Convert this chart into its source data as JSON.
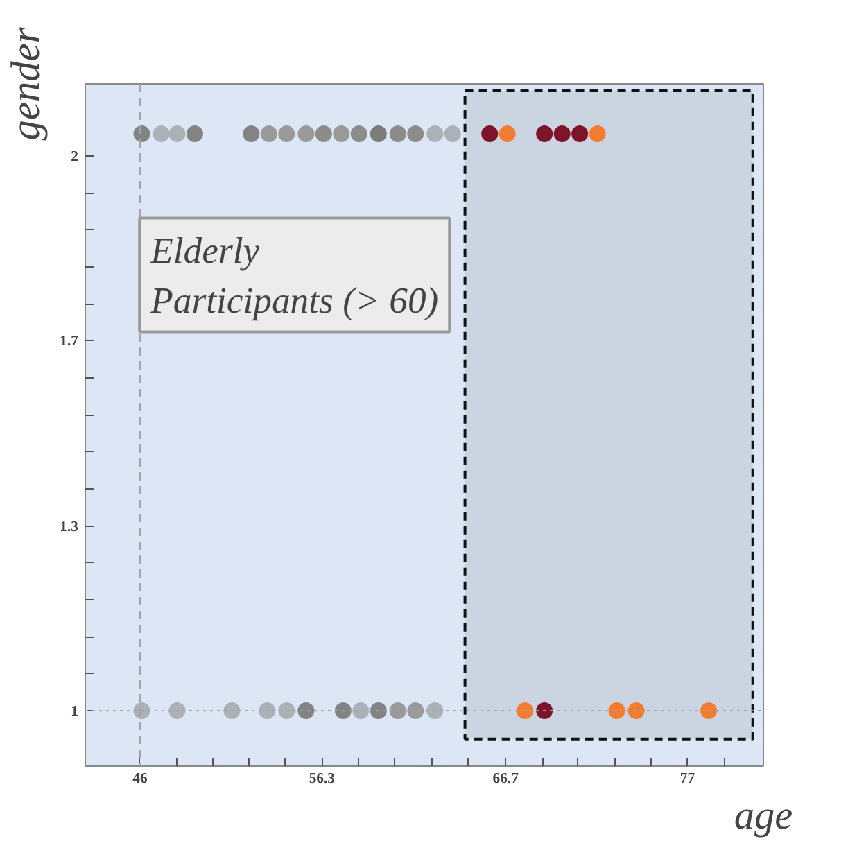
{
  "chart_data": {
    "type": "scatter",
    "xlabel": "age",
    "ylabel": "gender",
    "xlim": [
      42.9,
      81.3
    ],
    "ylim": [
      0.9,
      2.13
    ],
    "xticks": [
      {
        "value": 46,
        "label": "46"
      },
      {
        "value": 48.1,
        "label": null
      },
      {
        "value": 50.1,
        "label": null
      },
      {
        "value": 52.2,
        "label": null
      },
      {
        "value": 54.2,
        "label": null
      },
      {
        "value": 56.3,
        "label": "56.3"
      },
      {
        "value": 58.4,
        "label": null
      },
      {
        "value": 60.4,
        "label": null
      },
      {
        "value": 62.5,
        "label": null
      },
      {
        "value": 64.6,
        "label": null
      },
      {
        "value": 66.7,
        "label": "66.7"
      },
      {
        "value": 68.8,
        "label": null
      },
      {
        "value": 70.8,
        "label": null
      },
      {
        "value": 72.9,
        "label": null
      },
      {
        "value": 74.9,
        "label": null
      },
      {
        "value": 77,
        "label": "77"
      },
      {
        "value": 79.1,
        "label": null
      }
    ],
    "yticks": [
      1,
      {
        "value": 1.067,
        "label": null
      },
      {
        "value": 1.133,
        "label": null
      },
      {
        "value": 1.2,
        "label": null
      },
      {
        "value": 1.267,
        "label": null
      },
      {
        "value": 1.333,
        "label": "1.3"
      },
      {
        "value": 1.4,
        "label": null
      },
      {
        "value": 1.467,
        "label": null
      },
      {
        "value": 1.533,
        "label": null
      },
      {
        "value": 1.6,
        "label": null
      },
      {
        "value": 1.667,
        "label": "1.7"
      },
      {
        "value": 1.733,
        "label": null
      },
      {
        "value": 1.8,
        "label": null
      },
      {
        "value": 1.867,
        "label": null
      },
      {
        "value": 1.933,
        "label": null
      },
      2
    ],
    "marker": "circle",
    "grid": false,
    "series": [
      {
        "x": [
          46.1,
          47.2,
          48.1,
          49.1,
          52.3,
          53.3,
          54.3,
          55.4,
          56.4,
          57.4,
          58.4,
          59.5,
          60.6,
          61.6,
          62.7,
          63.7,
          65.8,
          66.8,
          68.9,
          69.9,
          70.9,
          71.9
        ],
        "values": [
          2.04,
          2.04,
          2.04,
          2.04,
          2.04,
          2.04,
          2.04,
          2.04,
          2.04,
          2.04,
          2.04,
          2.04,
          2.04,
          2.04,
          2.04,
          2.04,
          2.04,
          2.04,
          2.04,
          2.04,
          2.04,
          2.04
        ],
        "colors": [
          "#838383",
          "#acb1b8",
          "#acb1b8",
          "#838383",
          "#838383",
          "#9a9a9a",
          "#9a9a9a",
          "#9a9a9a",
          "#8c8c8c",
          "#9a9a9a",
          "#8c8c8c",
          "#7c7c7c",
          "#8c8c8c",
          "#8c8c8c",
          "#acb1b8",
          "#acb1b8",
          "#7e1429",
          "#f47c30",
          "#7e1429",
          "#7e1429",
          "#7e1429",
          "#f47c30"
        ]
      },
      {
        "x": [
          46.1,
          48.1,
          51.2,
          53.2,
          54.3,
          55.4,
          57.5,
          58.5,
          59.5,
          60.6,
          61.6,
          62.7,
          67.8,
          68.9,
          73.0,
          74.1,
          78.2
        ],
        "values": [
          1,
          1,
          1,
          1,
          1,
          1,
          1,
          1,
          1,
          1,
          1,
          1,
          1,
          1,
          1,
          1,
          1
        ],
        "colors": [
          "#acb1b8",
          "#acb1b8",
          "#acb1b8",
          "#acb1b8",
          "#acb1b8",
          "#838383",
          "#838383",
          "#acb1b8",
          "#838383",
          "#9a9a9a",
          "#9a9a9a",
          "#acb1b8",
          "#f47c30",
          "#7e1429",
          "#f47c30",
          "#f47c30",
          "#f47c30"
        ]
      }
    ],
    "ref_lines": [
      {
        "axis": "x",
        "value": 46,
        "color": "#a0a4aa",
        "line_style": "dashed"
      },
      {
        "axis": "y",
        "value": 1,
        "color": "#a0a4aa",
        "line_style": "dotted"
      }
    ],
    "bands": [
      {
        "axis": "x",
        "from": 64.4,
        "to": 80.7,
        "label": "Elderly\nParticipants (> 60)",
        "color": "#111111"
      }
    ]
  }
}
